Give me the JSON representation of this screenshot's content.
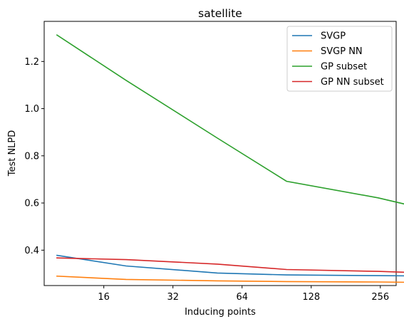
{
  "chart_data": {
    "type": "line",
    "title": "satellite",
    "xlabel": "Inducing points",
    "ylabel": "Test NLPD",
    "x_scale": "log2",
    "x": [
      10,
      20,
      50,
      100,
      250,
      500
    ],
    "x_ticks": [
      16,
      32,
      64,
      128,
      256
    ],
    "x_tick_labels": [
      "16",
      "32",
      "64",
      "128",
      "256"
    ],
    "y_ticks": [
      0.4,
      0.6,
      0.8,
      1.0,
      1.2
    ],
    "y_tick_labels": [
      "0.4",
      "0.6",
      "0.8",
      "1.0",
      "1.2"
    ],
    "xlim": [
      8.8,
      300
    ],
    "ylim": [
      0.25,
      1.37
    ],
    "grid": false,
    "legend_position": "top-right",
    "series": [
      {
        "name": "SVGP",
        "color": "#1f77b4",
        "values": [
          0.378,
          0.333,
          0.303,
          0.295,
          0.292,
          0.29
        ]
      },
      {
        "name": "SVGP NN",
        "color": "#ff7f0e",
        "values": [
          0.29,
          0.276,
          0.27,
          0.267,
          0.265,
          0.262
        ]
      },
      {
        "name": "GP subset",
        "color": "#2ca02c",
        "values": [
          1.312,
          1.12,
          0.875,
          0.692,
          0.622,
          0.553
        ]
      },
      {
        "name": "GP NN subset",
        "color": "#d62728",
        "values": [
          0.367,
          0.36,
          0.341,
          0.318,
          0.31,
          0.3
        ]
      }
    ]
  }
}
